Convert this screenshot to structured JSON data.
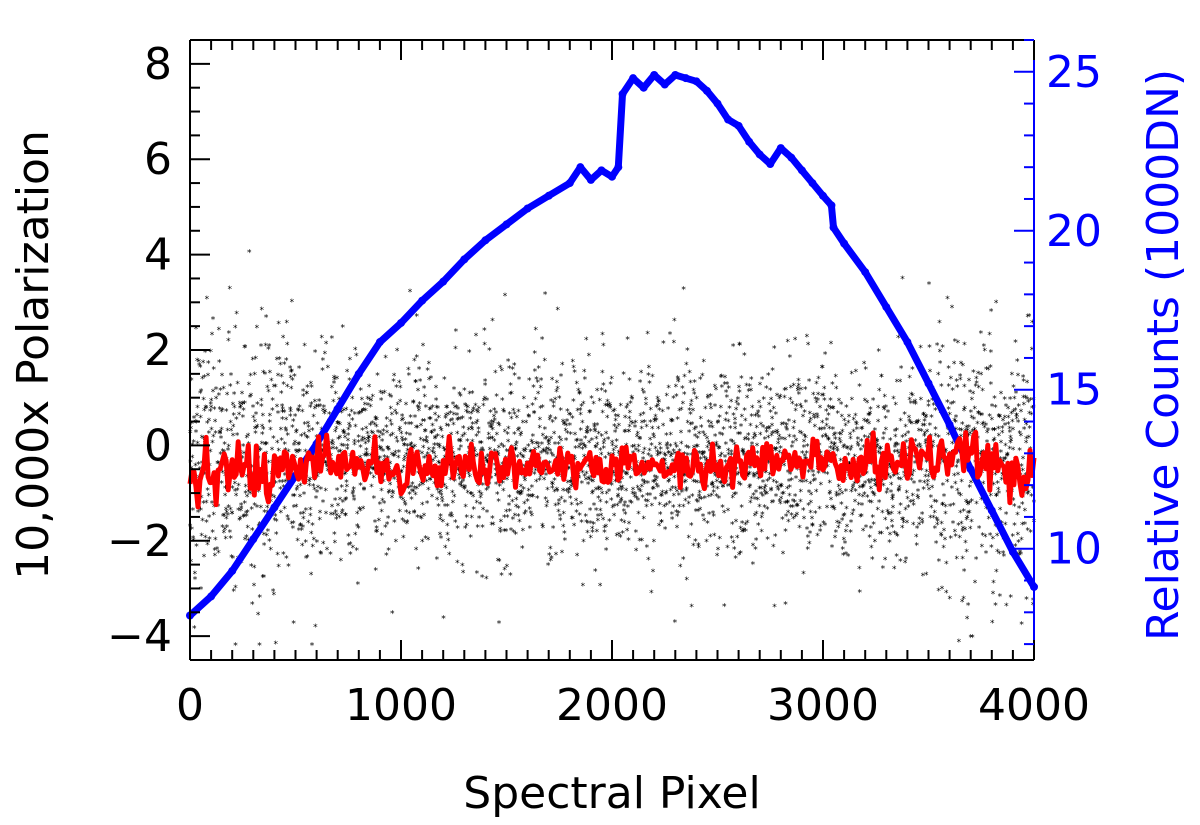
{
  "chart_data": {
    "type": "scatter",
    "title": "",
    "xlabel": "Spectral Pixel",
    "ylabel_left": "10,000x Polarization",
    "ylabel_right": "Relative Counts (1000DN)",
    "xlim": [
      0,
      4000
    ],
    "ylim_left": [
      -4.5,
      8.5
    ],
    "ylim_right": [
      6.5,
      26
    ],
    "x_ticks": [
      0,
      1000,
      2000,
      3000,
      4000
    ],
    "x_tick_labels": [
      "0",
      "1000",
      "2000",
      "3000",
      "4000"
    ],
    "y_left_ticks": [
      -4,
      -2,
      0,
      2,
      4,
      6,
      8
    ],
    "y_left_tick_labels": [
      "−4",
      "−2",
      "0",
      "2",
      "4",
      "6",
      "8"
    ],
    "y_right_ticks": [
      10,
      15,
      20,
      25
    ],
    "y_right_tick_labels": [
      "10",
      "15",
      "20",
      "25"
    ],
    "grid": false,
    "legend": "none",
    "colors": {
      "scatter": "#000000",
      "smoothed": "#ff0000",
      "counts": "#0000ff",
      "axes": "#000000",
      "right_axis": "#0000ff"
    },
    "series": [
      {
        "axis": "left",
        "style": "scatter-points",
        "color": "#000000",
        "x_range": [
          0,
          4000
        ],
        "mean": -0.3,
        "spread_sd": 1.0,
        "outlier_extent": [
          -4.2,
          4.5
        ]
      },
      {
        "axis": "left",
        "style": "line",
        "color": "#ff0000",
        "x": [
          0,
          200,
          400,
          600,
          800,
          1000,
          1200,
          1400,
          1600,
          1800,
          2000,
          2200,
          2400,
          2600,
          2800,
          3000,
          3200,
          3400,
          3600,
          3800,
          4000
        ],
        "y": [
          -0.4,
          -0.5,
          -0.6,
          -0.3,
          -0.4,
          -0.5,
          -0.4,
          -0.4,
          -0.4,
          -0.5,
          -0.5,
          -0.4,
          -0.5,
          -0.4,
          -0.3,
          -0.4,
          -0.4,
          -0.3,
          -0.2,
          -0.4,
          -0.5
        ]
      },
      {
        "axis": "right",
        "style": "line",
        "color": "#0000ff",
        "x": [
          0,
          100,
          200,
          300,
          400,
          500,
          600,
          700,
          800,
          900,
          1000,
          1100,
          1200,
          1300,
          1400,
          1500,
          1600,
          1700,
          1800,
          1850,
          1900,
          1950,
          2000,
          2030,
          2050,
          2100,
          2150,
          2200,
          2250,
          2300,
          2350,
          2400,
          2450,
          2500,
          2550,
          2600,
          2650,
          2700,
          2750,
          2800,
          2850,
          2900,
          2950,
          3000,
          3040,
          3050,
          3100,
          3200,
          3300,
          3400,
          3500,
          3600,
          3700,
          3800,
          3900,
          4000
        ],
        "y": [
          7.9,
          8.5,
          9.3,
          10.3,
          11.3,
          12.3,
          13.3,
          14.4,
          15.5,
          16.5,
          17.1,
          17.8,
          18.4,
          19.1,
          19.7,
          20.2,
          20.7,
          21.1,
          21.5,
          22.0,
          21.6,
          21.9,
          21.7,
          22.0,
          24.3,
          24.8,
          24.5,
          24.9,
          24.6,
          24.9,
          24.8,
          24.7,
          24.4,
          24.0,
          23.5,
          23.3,
          22.8,
          22.4,
          22.1,
          22.6,
          22.3,
          21.9,
          21.5,
          21.1,
          20.8,
          20.1,
          19.6,
          18.7,
          17.6,
          16.5,
          15.2,
          13.9,
          12.5,
          11.2,
          9.9,
          8.8
        ]
      }
    ]
  }
}
